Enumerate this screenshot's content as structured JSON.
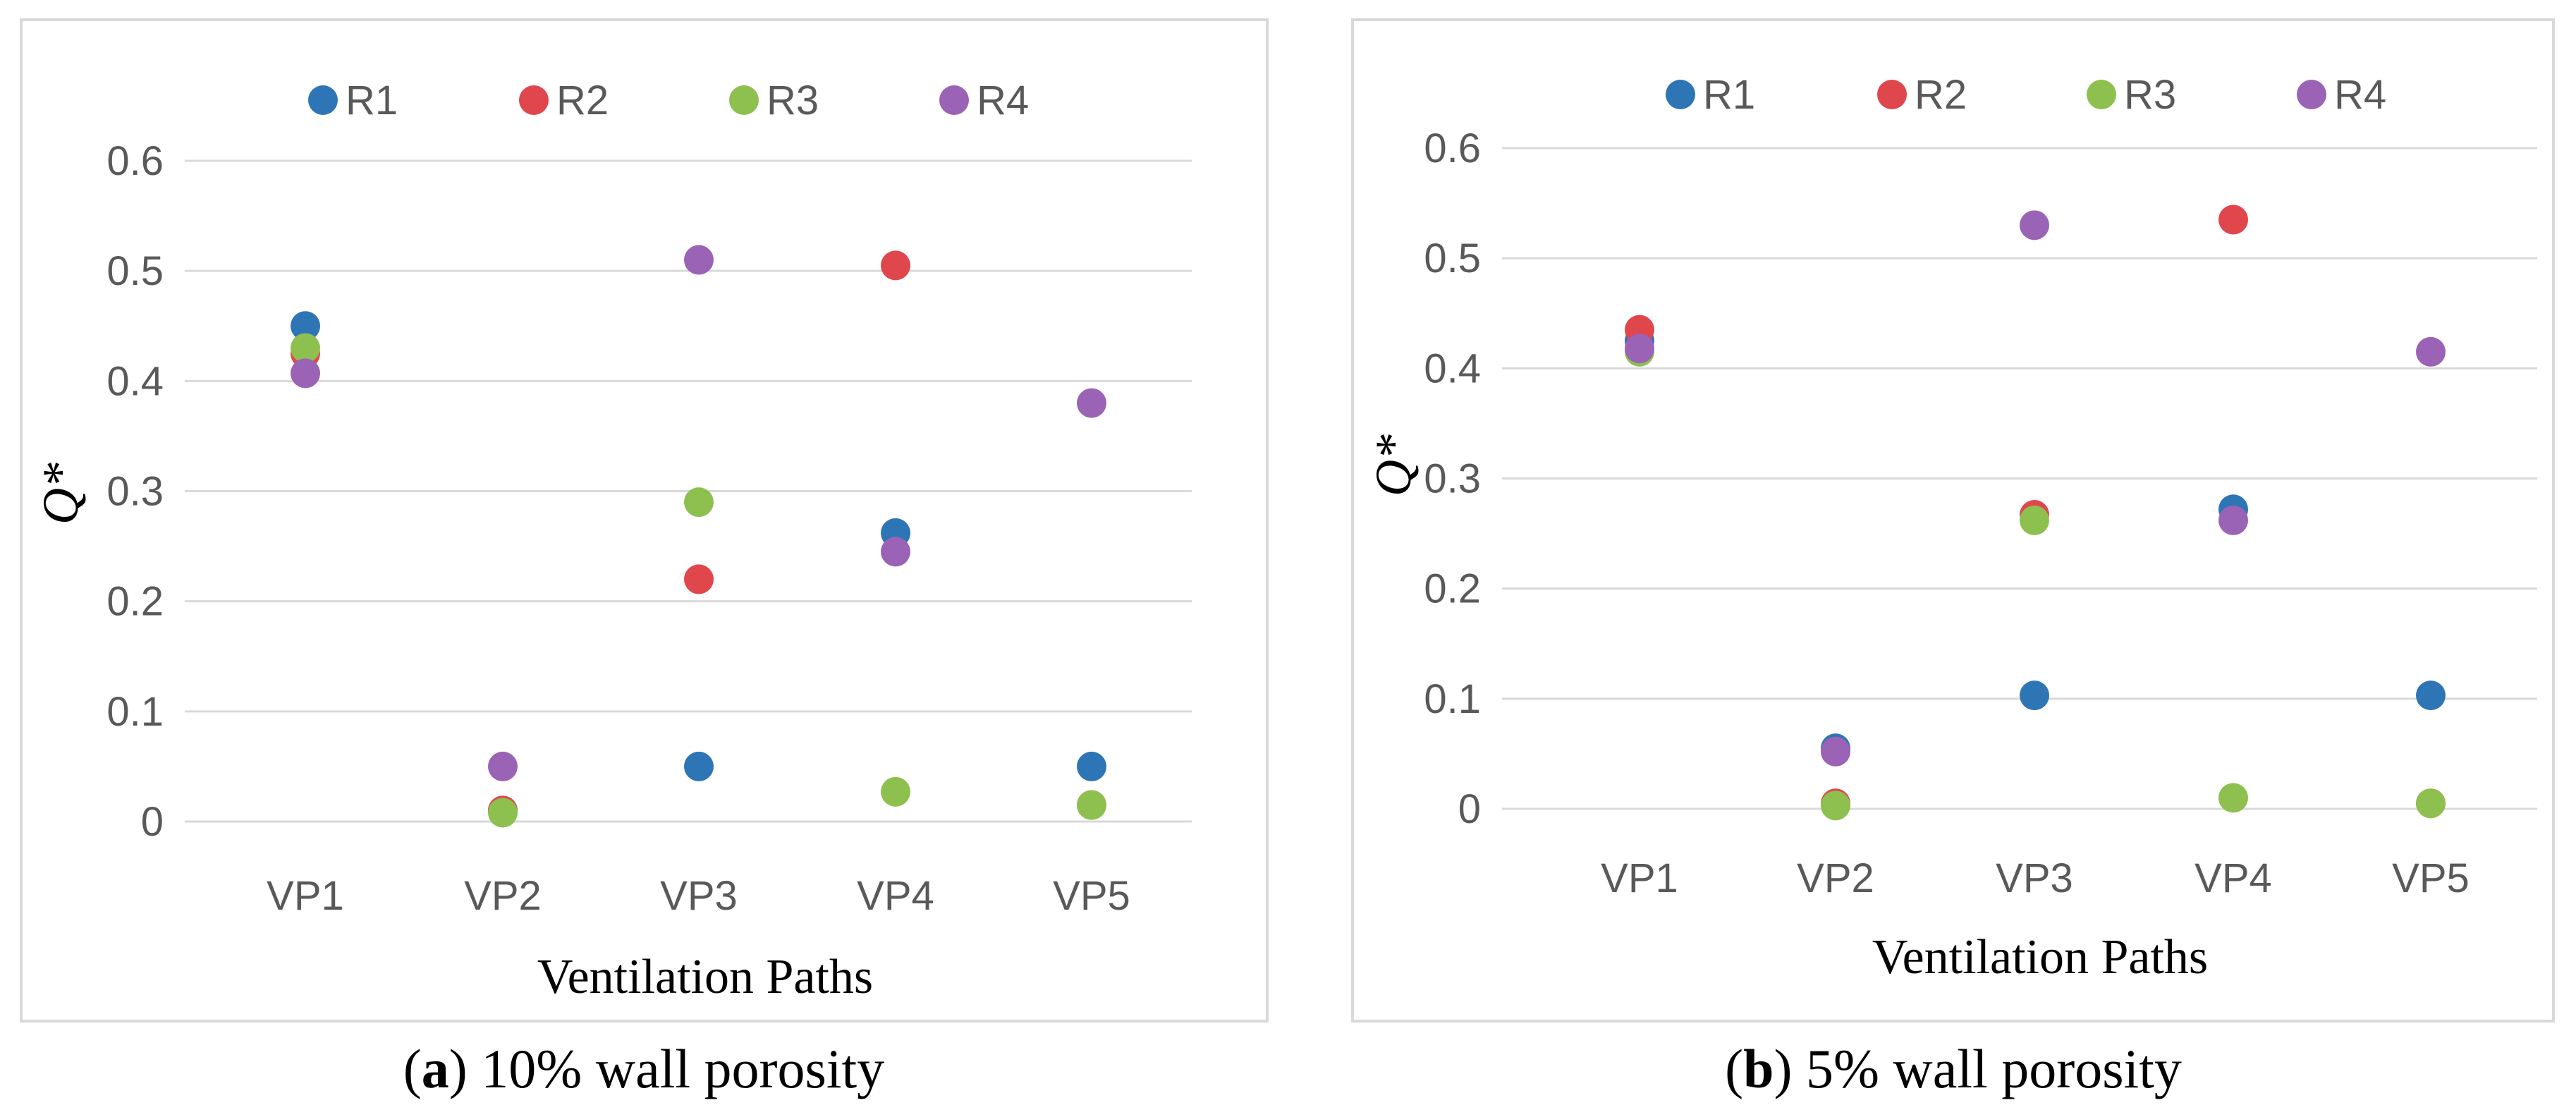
{
  "chart_data": [
    {
      "type": "scatter",
      "panel": "a",
      "caption_label": "a",
      "caption_text": "10% wall porosity",
      "categories": [
        "VP1",
        "VP2",
        "VP3",
        "VP4",
        "VP5"
      ],
      "xlabel": "Ventilation Paths",
      "ylabel": "Q*",
      "ylim": [
        0,
        0.6
      ],
      "yticks": [
        "0",
        "0.1",
        "0.2",
        "0.3",
        "0.4",
        "0.5",
        "0.6"
      ],
      "grid": true,
      "legend": "top",
      "series": [
        {
          "name": "R1",
          "color": "#2E75B6",
          "values": [
            0.45,
            0.01,
            0.05,
            0.262,
            0.05
          ]
        },
        {
          "name": "R2",
          "color": "#E0474C",
          "values": [
            0.425,
            0.01,
            0.22,
            0.505,
            0.015
          ]
        },
        {
          "name": "R3",
          "color": "#8DC04F",
          "values": [
            0.43,
            0.008,
            0.29,
            0.027,
            0.015
          ]
        },
        {
          "name": "R4",
          "color": "#9A63B5",
          "values": [
            0.407,
            0.05,
            0.51,
            0.245,
            0.38
          ]
        }
      ]
    },
    {
      "type": "scatter",
      "panel": "b",
      "caption_label": "b",
      "caption_text": "5% wall porosity",
      "categories": [
        "VP1",
        "VP2",
        "VP3",
        "VP4",
        "VP5"
      ],
      "xlabel": "Ventilation Paths",
      "ylabel": "Q*",
      "ylim": [
        0,
        0.6
      ],
      "yticks": [
        "0",
        "0.1",
        "0.2",
        "0.3",
        "0.4",
        "0.5",
        "0.6"
      ],
      "grid": true,
      "legend": "top",
      "series": [
        {
          "name": "R1",
          "color": "#2E75B6",
          "values": [
            0.425,
            0.055,
            0.103,
            0.272,
            0.103
          ]
        },
        {
          "name": "R2",
          "color": "#E0474C",
          "values": [
            0.435,
            0.005,
            0.267,
            0.535,
            0.005
          ]
        },
        {
          "name": "R3",
          "color": "#8DC04F",
          "values": [
            0.415,
            0.003,
            0.262,
            0.01,
            0.005
          ]
        },
        {
          "name": "R4",
          "color": "#9A63B5",
          "values": [
            0.418,
            0.052,
            0.53,
            0.262,
            0.415
          ]
        }
      ]
    }
  ]
}
